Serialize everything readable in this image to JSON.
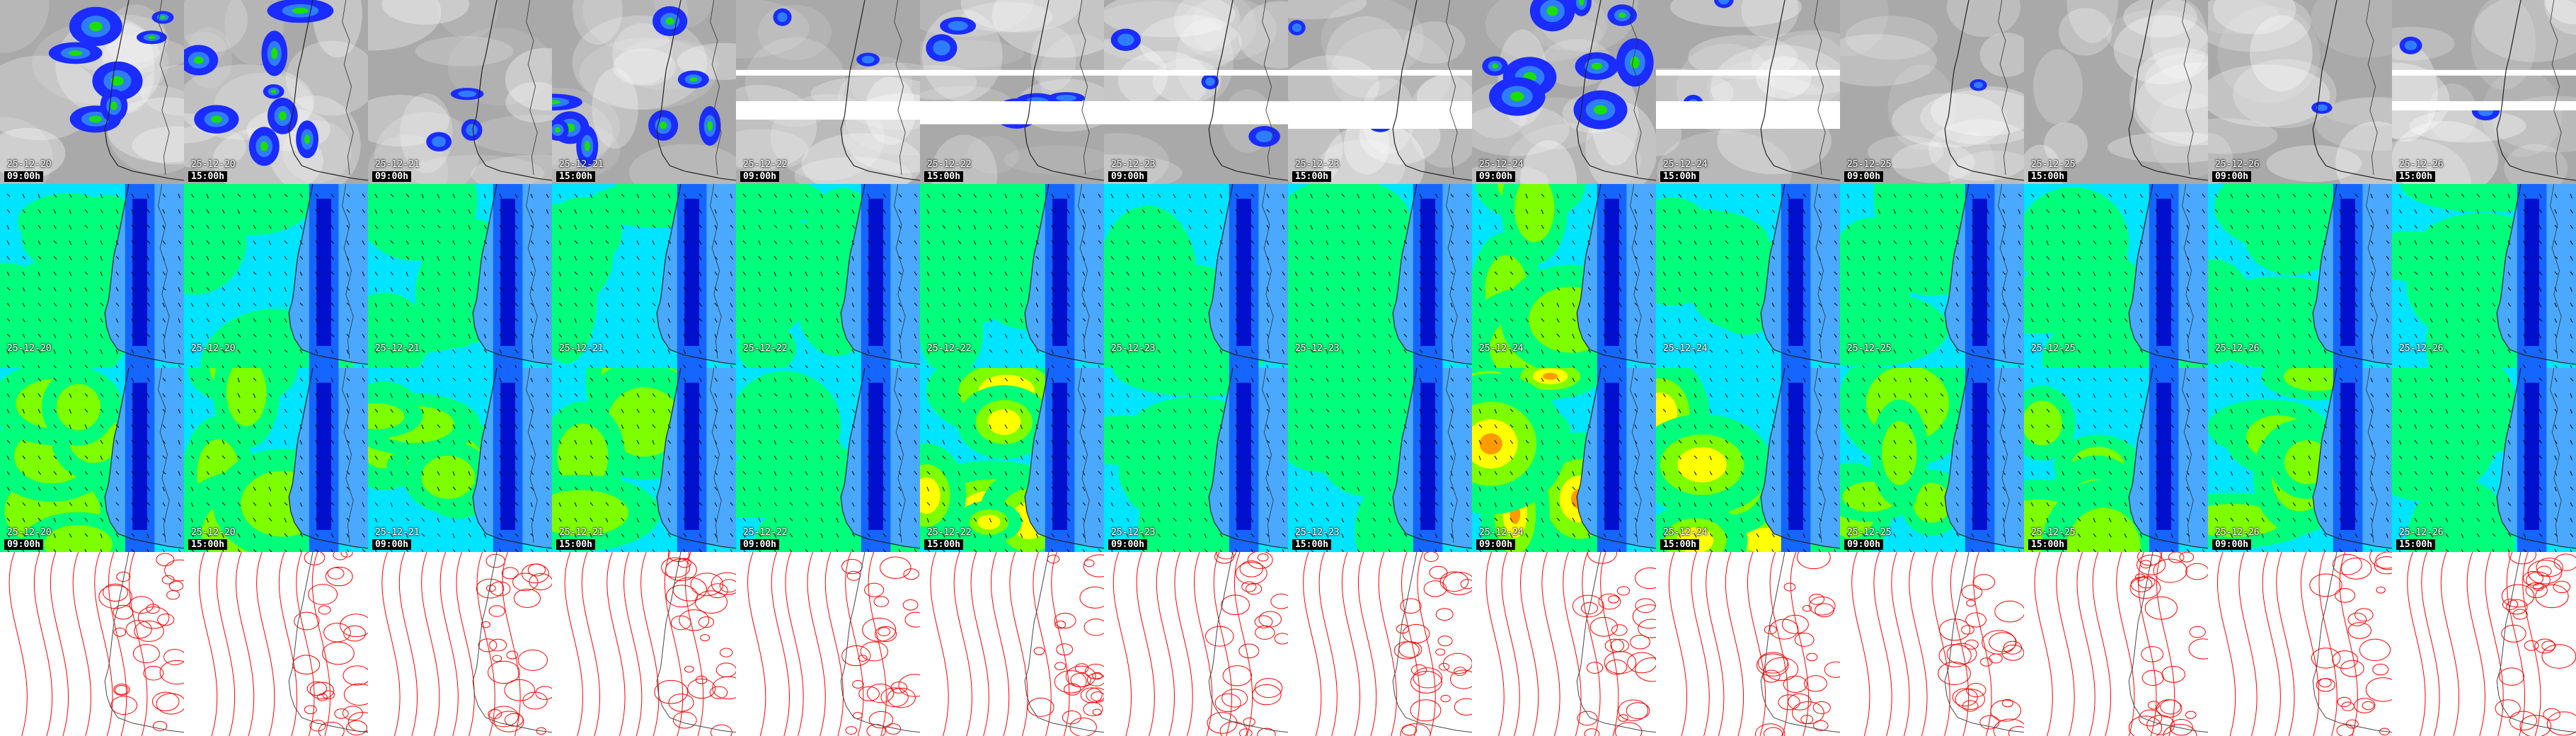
{
  "columns": [
    {
      "date": "25-12-20",
      "time": "09:00h"
    },
    {
      "date": "25-12-20",
      "time": "15:00h"
    },
    {
      "date": "25-12-21",
      "time": "09:00h"
    },
    {
      "date": "25-12-21",
      "time": "15:00h"
    },
    {
      "date": "25-12-22",
      "time": "09:00h"
    },
    {
      "date": "25-12-22",
      "time": "15:00h"
    },
    {
      "date": "25-12-23",
      "time": "09:00h"
    },
    {
      "date": "25-12-23",
      "time": "15:00h"
    },
    {
      "date": "25-12-24",
      "time": "09:00h"
    },
    {
      "date": "25-12-24",
      "time": "15:00h"
    },
    {
      "date": "25-12-25",
      "time": "09:00h"
    },
    {
      "date": "25-12-25",
      "time": "15:00h"
    },
    {
      "date": "25-12-26",
      "time": "09:00h"
    },
    {
      "date": "25-12-26",
      "time": "15:00h"
    }
  ],
  "rows": [
    {
      "kind": "precipitation",
      "background": "#a9a9a9",
      "colors": [
        "#1a2cff",
        "#2e7dff",
        "#19e000",
        "#e6ff00"
      ],
      "intensity": [
        0.7,
        0.9,
        0.3,
        0.8,
        0.2,
        0.5,
        0.3,
        0.2,
        0.9,
        0.2,
        0.1,
        0.0,
        0.1,
        0.2
      ],
      "banding": [
        0,
        0,
        0,
        0,
        0.4,
        0.5,
        0.5,
        0.6,
        0,
        0.6,
        0,
        0,
        0,
        0.2
      ]
    },
    {
      "kind": "wind",
      "colors": [
        "#00e5ff",
        "#4aa9ff",
        "#1466ff",
        "#0010cc",
        "#00ff7a",
        "#7dff00"
      ],
      "intensity": [
        0.25,
        0.3,
        0.25,
        0.25,
        0.3,
        0.3,
        0.2,
        0.25,
        0.6,
        0.5,
        0.3,
        0.3,
        0.3,
        0.3
      ],
      "show_date": true
    },
    {
      "kind": "gust",
      "colors": [
        "#00e5ff",
        "#4aa9ff",
        "#1466ff",
        "#0010cc",
        "#00ff7a",
        "#7dff00",
        "#ffff00",
        "#ff9a00"
      ],
      "intensity": [
        0.55,
        0.65,
        0.55,
        0.7,
        0.45,
        0.75,
        0.45,
        0.5,
        0.9,
        0.85,
        0.55,
        0.55,
        0.55,
        0.5
      ],
      "show_date": true
    },
    {
      "kind": "pressure",
      "line_color": "#ff0000",
      "background": "#ffffff"
    }
  ]
}
